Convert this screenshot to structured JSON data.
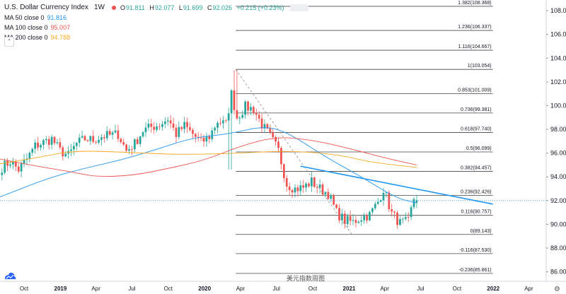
{
  "header": {
    "title": "U.S. Dollar Currency Index",
    "timeframe": "1W",
    "ohlc": {
      "o_label": "O",
      "o": "91.811",
      "h_label": "H",
      "h": "92.077",
      "l_label": "L",
      "l": "91.699",
      "c_label": "C",
      "c": "92.026",
      "change": "+0.215 (+0.23%)"
    }
  },
  "indicators": [
    {
      "name": "MA 50 close 0",
      "value": "91.816",
      "color": "#2196f3"
    },
    {
      "name": "MA 100 close 0",
      "value": "95.007",
      "color": "#ef5350"
    },
    {
      "name": "MA 200 close 0",
      "value": "94.788",
      "color": "#f9a825"
    }
  ],
  "watermark": "美元指数周图",
  "colors": {
    "up": "#26a69a",
    "down": "#ef5350",
    "fib": "#131722",
    "trend": "#2196f3",
    "last": "#2196f3"
  },
  "icons": {
    "logo": "tradingview-logo-icon",
    "settings": "gear-icon"
  },
  "chart_data": {
    "type": "candlestick",
    "title": "U.S. Dollar Currency Index",
    "y_range": [
      85.2,
      108.9
    ],
    "y_ticks": [
      86,
      88,
      90,
      92,
      94,
      96,
      98,
      100,
      102,
      104,
      106,
      108
    ],
    "y_tick_labels": [
      "86.000",
      "88.000",
      "90.000",
      "92.000",
      "94.000",
      "96.000",
      "98.000",
      "100.000",
      "102.000",
      "104.000",
      "106.000",
      "108.000"
    ],
    "x_range": [
      "2018-08-01",
      "2022-05-15"
    ],
    "x_ticks": [
      {
        "date": "2018-10-01",
        "label": "Oct"
      },
      {
        "date": "2019-01-01",
        "label": "2019"
      },
      {
        "date": "2019-04-01",
        "label": "Apr"
      },
      {
        "date": "2019-07-01",
        "label": "Jul"
      },
      {
        "date": "2019-10-01",
        "label": "Oct"
      },
      {
        "date": "2020-01-01",
        "label": "2020"
      },
      {
        "date": "2020-04-01",
        "label": "Apr"
      },
      {
        "date": "2020-07-01",
        "label": "Jul"
      },
      {
        "date": "2020-10-01",
        "label": "Oct"
      },
      {
        "date": "2021-01-01",
        "label": "2021"
      },
      {
        "date": "2021-04-01",
        "label": "Apr"
      },
      {
        "date": "2021-07-01",
        "label": "Jul"
      },
      {
        "date": "2021-10-01",
        "label": "Oct"
      },
      {
        "date": "2022-01-01",
        "label": "2022"
      },
      {
        "date": "2022-04-01",
        "label": "Apr"
      }
    ],
    "last_price": "92.026",
    "close_path": [
      [
        "2018-08-06",
        94.8
      ],
      [
        "2018-08-27",
        95.3
      ],
      [
        "2018-09-17",
        94.6
      ],
      [
        "2018-10-08",
        95.5
      ],
      [
        "2018-10-29",
        96.6
      ],
      [
        "2018-11-19",
        96.9
      ],
      [
        "2018-12-10",
        97.2
      ],
      [
        "2018-12-31",
        96.2
      ],
      [
        "2019-01-21",
        95.8
      ],
      [
        "2019-02-11",
        96.8
      ],
      [
        "2019-03-04",
        97.2
      ],
      [
        "2019-03-25",
        97.1
      ],
      [
        "2019-04-15",
        97.4
      ],
      [
        "2019-05-06",
        97.5
      ],
      [
        "2019-05-27",
        97.6
      ],
      [
        "2019-06-17",
        96.2
      ],
      [
        "2019-07-08",
        96.8
      ],
      [
        "2019-07-29",
        97.9
      ],
      [
        "2019-08-19",
        98.2
      ],
      [
        "2019-09-09",
        98.4
      ],
      [
        "2019-09-30",
        98.9
      ],
      [
        "2019-10-21",
        97.6
      ],
      [
        "2019-11-11",
        98.3
      ],
      [
        "2019-12-02",
        97.6
      ],
      [
        "2019-12-23",
        96.9
      ],
      [
        "2020-01-13",
        97.4
      ],
      [
        "2020-02-03",
        98.7
      ],
      [
        "2020-02-24",
        98.4
      ],
      [
        "2020-03-09",
        101.0
      ],
      [
        "2020-03-23",
        99.0
      ],
      [
        "2020-04-13",
        99.9
      ],
      [
        "2020-05-04",
        99.7
      ],
      [
        "2020-05-25",
        98.4
      ],
      [
        "2020-06-15",
        97.4
      ],
      [
        "2020-07-06",
        96.2
      ],
      [
        "2020-07-27",
        93.4
      ],
      [
        "2020-08-17",
        93.0
      ],
      [
        "2020-09-07",
        93.1
      ],
      [
        "2020-09-28",
        93.6
      ],
      [
        "2020-10-19",
        93.0
      ],
      [
        "2020-11-09",
        92.6
      ],
      [
        "2020-11-30",
        91.0
      ],
      [
        "2020-12-21",
        90.3
      ],
      [
        "2021-01-11",
        90.2
      ],
      [
        "2021-02-01",
        90.6
      ],
      [
        "2021-02-22",
        90.8
      ],
      [
        "2021-03-15",
        91.9
      ],
      [
        "2021-03-29",
        93.0
      ],
      [
        "2021-04-19",
        90.9
      ],
      [
        "2021-05-10",
        90.1
      ],
      [
        "2021-05-31",
        90.2
      ],
      [
        "2021-06-14",
        92.2
      ],
      [
        "2021-06-21",
        92.0
      ]
    ],
    "series": [
      {
        "name": "MA 50 close 0",
        "color": "#2196f3",
        "points": [
          [
            "2018-08-01",
            92.3
          ],
          [
            "2018-12-01",
            93.9
          ],
          [
            "2019-03-01",
            94.7
          ],
          [
            "2019-06-01",
            95.4
          ],
          [
            "2019-09-01",
            96.3
          ],
          [
            "2019-12-01",
            97.3
          ],
          [
            "2020-03-01",
            97.6
          ],
          [
            "2020-06-01",
            98.3
          ],
          [
            "2020-08-01",
            97.7
          ],
          [
            "2020-11-01",
            95.7
          ],
          [
            "2021-02-01",
            94.0
          ],
          [
            "2021-05-01",
            92.2
          ],
          [
            "2021-06-21",
            91.8
          ]
        ]
      },
      {
        "name": "MA 100 close 0",
        "color": "#ef5350",
        "points": [
          [
            "2018-08-01",
            95.5
          ],
          [
            "2018-11-01",
            94.9
          ],
          [
            "2019-02-01",
            94.4
          ],
          [
            "2019-04-01",
            94.0
          ],
          [
            "2019-07-01",
            94.1
          ],
          [
            "2019-10-01",
            94.7
          ],
          [
            "2020-01-01",
            95.4
          ],
          [
            "2020-04-01",
            96.6
          ],
          [
            "2020-07-01",
            97.4
          ],
          [
            "2020-10-01",
            97.1
          ],
          [
            "2021-01-01",
            96.4
          ],
          [
            "2021-04-01",
            95.6
          ],
          [
            "2021-06-21",
            95.0
          ]
        ]
      },
      {
        "name": "MA 200 close 0",
        "color": "#f9a825",
        "points": [
          [
            "2018-08-01",
            95.1
          ],
          [
            "2018-11-01",
            95.6
          ],
          [
            "2019-02-01",
            96.2
          ],
          [
            "2019-06-01",
            96.1
          ],
          [
            "2019-10-01",
            95.9
          ],
          [
            "2020-01-01",
            95.9
          ],
          [
            "2020-04-01",
            96.0
          ],
          [
            "2020-08-01",
            96.2
          ],
          [
            "2020-12-01",
            95.9
          ],
          [
            "2021-03-01",
            95.2
          ],
          [
            "2021-06-21",
            94.8
          ]
        ]
      }
    ],
    "fib_levels": [
      {
        "ratio": "1.382",
        "price": 108.368,
        "label": "1.382(108.368)"
      },
      {
        "ratio": "1.236",
        "price": 106.337,
        "label": "1.236(106.337)"
      },
      {
        "ratio": "1.116",
        "price": 104.667,
        "label": "1.116(104.667)"
      },
      {
        "ratio": "1",
        "price": 103.054,
        "label": "1(103.054)"
      },
      {
        "ratio": "0.853",
        "price": 101.009,
        "label": "0.853(101.009)"
      },
      {
        "ratio": "0.736",
        "price": 99.381,
        "label": "0.736(99.381)"
      },
      {
        "ratio": "0.618",
        "price": 97.74,
        "label": "0.618(97.740)"
      },
      {
        "ratio": "0.5",
        "price": 96.099,
        "label": "0.5(96.099)"
      },
      {
        "ratio": "0.382",
        "price": 94.457,
        "label": "0.382(94.457)"
      },
      {
        "ratio": "0.236",
        "price": 92.426,
        "label": "0.236(92.426)"
      },
      {
        "ratio": "0.116",
        "price": 90.757,
        "label": "0.116(90.757)"
      },
      {
        "ratio": "0",
        "price": 89.143,
        "label": "0(89.143)"
      },
      {
        "ratio": "-0.116",
        "price": 87.53,
        "label": "-0.116(87.530)"
      },
      {
        "ratio": "-0.236",
        "price": 85.861,
        "label": "-0.236(85.861)"
      }
    ],
    "fib_start": "2020-03-20",
    "fib_end": "2021-12-31",
    "fib_anchor": {
      "from": [
        "2020-03-20",
        103.054
      ],
      "to": [
        "2021-01-08",
        89.143
      ]
    },
    "trendline": {
      "from": [
        "2020-08-31",
        94.9
      ],
      "to": [
        "2021-12-31",
        91.7
      ]
    }
  }
}
